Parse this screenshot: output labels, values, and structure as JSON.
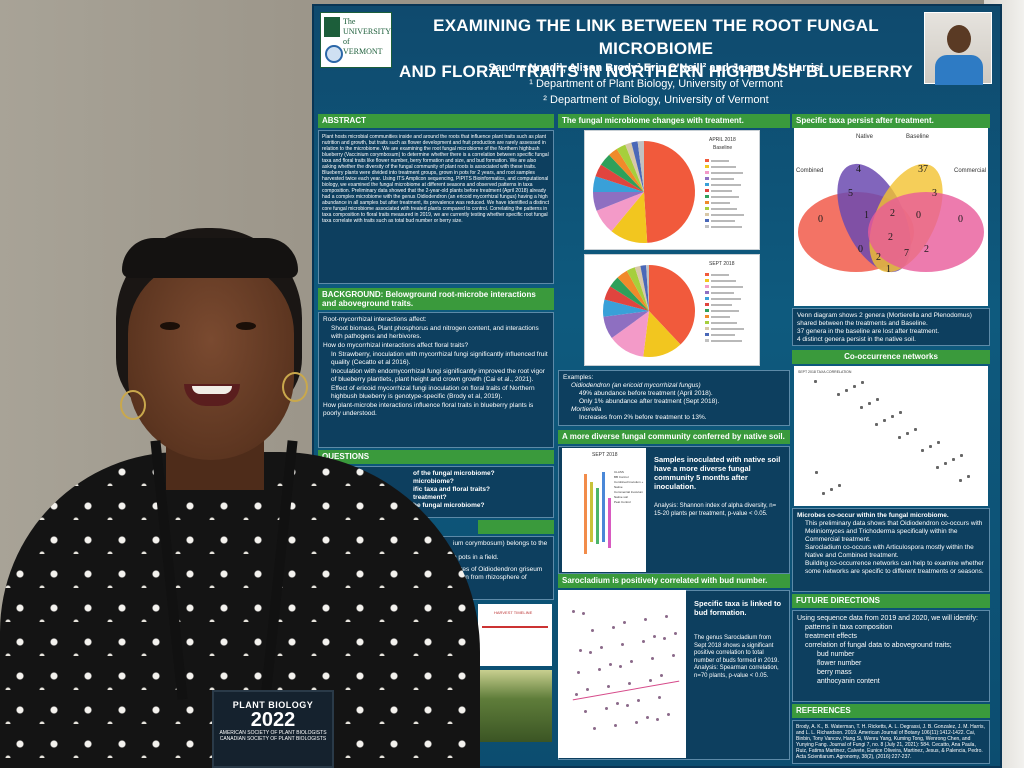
{
  "poster": {
    "logo_text": "The UNIVERSITY of VERMONT",
    "title_line1": "EXAMINING THE LINK BETWEEN THE ROOT FUNGAL MICROBIOME",
    "title_line2": "AND FLORAL TRAITS IN NORTHERN HIGHBUSH BLUEBERRY",
    "authors": "Sandra Nnadi¹, Alison Brody² Erin O'Neill² and Jeanne M. Harris¹",
    "affiliation1": "¹ Department of Plant Biology, University of Vermont",
    "affiliation2": "² Department of Biology, University of Vermont",
    "sections": {
      "abstract": "ABSTRACT",
      "background": "BACKGROUND: Belowground root-microbe interactions and aboveground traits.",
      "questions": "QUESTIONS",
      "microbiome_changes": "The fungal microbiome changes with treatment.",
      "taxa_persist": "Specific taxa persist after treatment.",
      "co_occurrence": "Co-occurrence networks",
      "diverse_community": "A more diverse fungal community conferred by native soil.",
      "sarocladium": "Sarocladium is positively correlated with bud number.",
      "future": "FUTURE DIRECTIONS",
      "references": "REFERENCES"
    },
    "background_items": [
      "Root-mycorrhizal interactions affect:",
      "Shoot biomass, Plant phosphorus and nitrogen content, and interactions with pathogens and herbivores.",
      "How do mycorrhizal interactions affect floral traits?",
      "In Strawberry, inoculation with mycorrhizal fungi significantly influenced fruit quality (Cecatto et al 2016).",
      "Inoculation with endomycorrhizal fungi significantly improved the root vigor of blueberry plantlets, plant height and crown growth (Cai et al., 2021).",
      "Effect of ericoid mycorrhizal fungi inoculation on floral traits of Northern highbush blueberry is genotype-specific (Brody et al, 2019).",
      "How plant-microbe interactions influence floral traits in blueberry plants is poorly understood."
    ],
    "questions_items": [
      "of the fungal microbiome?",
      "microbiome?",
      "ific taxa and floral traits?",
      "treatment?",
      "he fungal microbiome?"
    ],
    "methods_fragments": [
      "ium corymbosum) belongs to the",
      "h pots in a field.",
      "pores of Oidiodendron griseum",
      "taken from rhizosphere of"
    ],
    "pie1_title": "APRIL 2018",
    "pie1_subtitle": "Baseline",
    "pie2_title": "SEPT 2018",
    "examples_label": "Examples:",
    "examples_items": [
      "Oidiodendron (an ericoid mycorrhizal fungus)",
      "49% abundance before treatment (April 2018).",
      "Only 1% abundance after treatment (Sept 2018).",
      "Mortierella",
      "Increases from 2% before treatment to 13%."
    ],
    "venn_labels": [
      "Native",
      "Baseline",
      "Combined",
      "Commercial"
    ],
    "venn_numbers": [
      "4",
      "37",
      "5",
      "3",
      "0",
      "1",
      "2",
      "0",
      "0",
      "2",
      "7",
      "0",
      "2",
      "1",
      "2"
    ],
    "venn_notes": [
      "Venn diagram shows 2 genera (Mortierella and Plenodomus) shared between the treatments and Baseline.",
      "37 genera in the baseline are lost after treatment.",
      "4 distinct genera persist in the native soil."
    ],
    "network_title": "SEPT 2018 TAXA CORRELATION",
    "microbes_notes": [
      "Microbes co-occur within the fungal microbiome.",
      "This preliminary data shows that Oidiodendron co-occurs with Meliniomyces and Trichoderma specifically within the Commercial treatment.",
      "Sarocladium co-occurs with Articulospora mostly within the Native and Combined treatment.",
      "Building co-occurrence networks can help to examine whether some networks are specific to different treatments or seasons."
    ],
    "diversity_text": "Samples inoculated with native soil have a more diverse fungal community 5 months after inoculation.",
    "diversity_analysis": "Analysis: Shannon index of alpha diversity, n= 15-20 plants per treatment, p-value < 0.05.",
    "boxplot_title": "SEPT 2018",
    "boxplot_legend": [
      "CLASS",
      "BB Control",
      "Combined Inoculum + Native",
      "Commercial Inoculum",
      "Native soil",
      "Peat Control"
    ],
    "sarocladium_text": "Specific taxa is linked to bud formation.",
    "sarocladium_detail": "The genus Sarocladium from Sept 2018 shows a significant positive correlation to total number of buds formed in 2019. Analysis: Spearman correlation, n=70 plants, p-value < 0.05.",
    "future_intro": "Using sequence data from 2019 and 2020, we will identify:",
    "future_items": [
      "patterns in taxa composition",
      "treatment effects",
      "correlation of fungal data to aboveground traits;",
      "bud number",
      "flower number",
      "berry mass",
      "anthocyanin content"
    ],
    "harvest_title": "HARVEST TIMELINE"
  },
  "badge": {
    "line1": "PLANT BIOLOGY",
    "year": "2022",
    "line3": "AMERICAN SOCIETY OF PLANT BIOLOGISTS",
    "line4": "CANADIAN SOCIETY OF PLANT BIOLOGISTS"
  },
  "colors": {
    "poster_bg": "#0e5a7e",
    "section_green": "#3a9a3c",
    "venn_red": "#f15a4a",
    "venn_yellow": "#f2c230",
    "venn_purple": "#6b4ab0",
    "venn_pink": "#e85a9a"
  },
  "chart_data": [
    {
      "type": "pie",
      "title": "APRIL 2018",
      "subtitle": "Baseline",
      "values": [
        49,
        12,
        8,
        6,
        5,
        4,
        4,
        3,
        3,
        2,
        2,
        2
      ],
      "colors": [
        "#f15a3c",
        "#f2c61f",
        "#f39ac8",
        "#8e6fc1",
        "#39a0d8",
        "#e0443e",
        "#2fa05a",
        "#f08a2a",
        "#a6cf3c",
        "#d8c8a8",
        "#4a68b8",
        "#c1c1c1"
      ]
    },
    {
      "type": "pie",
      "title": "SEPT 2018",
      "values": [
        38,
        14,
        13,
        8,
        6,
        5,
        4,
        4,
        3,
        2,
        2,
        1
      ],
      "colors": [
        "#f15a3c",
        "#f2c61f",
        "#f39ac8",
        "#8e6fc1",
        "#39a0d8",
        "#e0443e",
        "#2fa05a",
        "#f08a2a",
        "#a6cf3c",
        "#d8c8a8",
        "#4a68b8",
        "#c1c1c1"
      ]
    }
  ]
}
